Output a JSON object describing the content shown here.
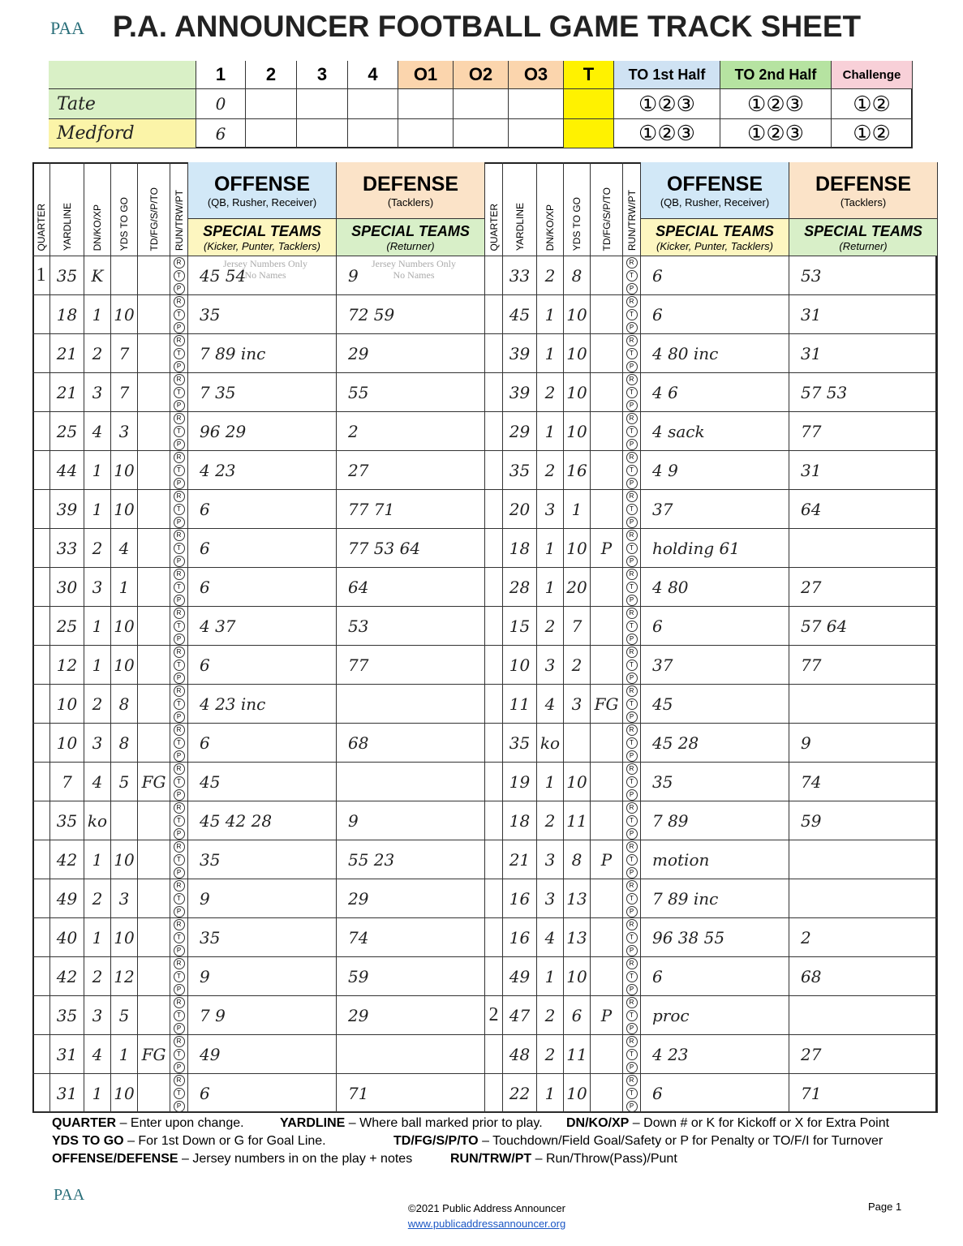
{
  "header": {
    "logo": "PAA",
    "title": "P.A. ANNOUNCER FOOTBALL GAME TRACK SHEET"
  },
  "scoreboard": {
    "columns": [
      "1",
      "2",
      "3",
      "4",
      "O1",
      "O2",
      "O3",
      "T",
      "TO 1st Half",
      "TO 2nd Half",
      "Challenge"
    ],
    "teams": [
      {
        "name": "Tate",
        "scores": [
          "0",
          null,
          null,
          null,
          null,
          null,
          null,
          null
        ],
        "to1": "①②③",
        "to2": "①②③",
        "challenge": "①②"
      },
      {
        "name": "Medford",
        "scores": [
          "6",
          null,
          null,
          null,
          null,
          null,
          null,
          null
        ],
        "to1": "①②③",
        "to2": "①②③",
        "challenge": "①②"
      }
    ]
  },
  "track": {
    "columns": {
      "quarter": "QUARTER",
      "yardline": "YARDLINE",
      "down": "DN/KO/XP",
      "to_go": "YDS TO GO",
      "result": "TD/FG/S/P/TO",
      "play": "RUN/TRW/PT",
      "offense": "OFFENSE",
      "offense_sub": "(QB, Rusher, Receiver)",
      "defense": "DEFENSE",
      "defense_sub": "(Tacklers)",
      "st_left": "SPECIAL TEAMS",
      "st_left_sub": "(Kicker, Punter, Tacklers)",
      "st_right": "SPECIAL TEAMS",
      "st_right_sub": "(Returner)"
    },
    "play_marks": [
      "R",
      "T",
      "P"
    ],
    "placeholder": [
      "Jersey Numbers Only",
      "No Names"
    ],
    "left": [
      [
        "1",
        "35",
        "K",
        null,
        null,
        "45 54",
        "9"
      ],
      [
        null,
        "18",
        "1",
        "10",
        null,
        "35",
        "72 59"
      ],
      [
        null,
        "21",
        "2",
        "7",
        null,
        "7 89 inc",
        "29"
      ],
      [
        null,
        "21",
        "3",
        "7",
        null,
        "7 35",
        "55"
      ],
      [
        null,
        "25",
        "4",
        "3",
        null,
        "96 29",
        "2"
      ],
      [
        null,
        "44",
        "1",
        "10",
        null,
        "4 23",
        "27"
      ],
      [
        null,
        "39",
        "1",
        "10",
        null,
        "6",
        "77 71"
      ],
      [
        null,
        "33",
        "2",
        "4",
        null,
        "6",
        "77 53 64"
      ],
      [
        null,
        "30",
        "3",
        "1",
        null,
        "6",
        "64"
      ],
      [
        null,
        "25",
        "1",
        "10",
        null,
        "4 37",
        "53"
      ],
      [
        null,
        "12",
        "1",
        "10",
        null,
        "6",
        "77"
      ],
      [
        null,
        "10",
        "2",
        "8",
        null,
        "4 23 inc",
        null
      ],
      [
        null,
        "10",
        "3",
        "8",
        null,
        "6",
        "68"
      ],
      [
        null,
        "7",
        "4",
        "5",
        "FG",
        "45",
        null
      ],
      [
        null,
        "35",
        "ko",
        null,
        null,
        "45 42 28",
        "9"
      ],
      [
        null,
        "42",
        "1",
        "10",
        null,
        "35",
        "55 23"
      ],
      [
        null,
        "49",
        "2",
        "3",
        null,
        "9",
        "29"
      ],
      [
        null,
        "40",
        "1",
        "10",
        null,
        "35",
        "74"
      ],
      [
        null,
        "42",
        "2",
        "12",
        null,
        "9",
        "59"
      ],
      [
        null,
        "35",
        "3",
        "5",
        null,
        "7 9",
        "29"
      ],
      [
        null,
        "31",
        "4",
        "1",
        "FG",
        "49",
        null
      ],
      [
        null,
        "31",
        "1",
        "10",
        null,
        "6",
        "71"
      ]
    ],
    "right": [
      [
        null,
        "33",
        "2",
        "8",
        null,
        "6",
        "53"
      ],
      [
        null,
        "45",
        "1",
        "10",
        null,
        "6",
        "31"
      ],
      [
        null,
        "39",
        "1",
        "10",
        null,
        "4 80 inc",
        "31"
      ],
      [
        null,
        "39",
        "2",
        "10",
        null,
        "4 6",
        "57 53"
      ],
      [
        null,
        "29",
        "1",
        "10",
        null,
        "4 sack",
        "77"
      ],
      [
        null,
        "35",
        "2",
        "16",
        null,
        "4 9",
        "31"
      ],
      [
        null,
        "20",
        "3",
        "1",
        null,
        "37",
        "64"
      ],
      [
        null,
        "18",
        "1",
        "10",
        "P",
        "holding 61",
        null
      ],
      [
        null,
        "28",
        "1",
        "20",
        null,
        "4 80",
        "27"
      ],
      [
        null,
        "15",
        "2",
        "7",
        null,
        "6",
        "57 64"
      ],
      [
        null,
        "10",
        "3",
        "2",
        null,
        "37",
        "77"
      ],
      [
        null,
        "11",
        "4",
        "3",
        "FG",
        "45",
        null
      ],
      [
        null,
        "35",
        "ko",
        null,
        null,
        "45 28",
        "9"
      ],
      [
        null,
        "19",
        "1",
        "10",
        null,
        "35",
        "74"
      ],
      [
        null,
        "18",
        "2",
        "11",
        null,
        "7 89",
        "59"
      ],
      [
        null,
        "21",
        "3",
        "8",
        "P",
        "motion",
        null
      ],
      [
        null,
        "16",
        "3",
        "13",
        null,
        "7 89 inc",
        null
      ],
      [
        null,
        "16",
        "4",
        "13",
        null,
        "96 38 55",
        "2"
      ],
      [
        null,
        "49",
        "1",
        "10",
        null,
        "6",
        "68"
      ],
      [
        "2",
        "47",
        "2",
        "6",
        "P",
        "proc",
        null
      ],
      [
        null,
        "48",
        "2",
        "11",
        null,
        "4 23",
        "27"
      ],
      [
        null,
        "22",
        "1",
        "10",
        null,
        "6",
        "71"
      ]
    ]
  },
  "legend": [
    [
      {
        "term": "QUARTER",
        "desc": "– Enter upon change."
      },
      {
        "term": "YARDLINE",
        "desc": "– Where ball marked prior to play."
      },
      {
        "term": "DN/KO/XP",
        "desc": "– Down # or K for Kickoff or X for Extra Point"
      }
    ],
    [
      {
        "term": "YDS TO GO",
        "desc": "– For 1st Down or G for Goal Line."
      },
      {
        "term": "TD/FG/S/P/TO",
        "desc": "– Touchdown/Field Goal/Safety or P for Penalty or TO/F/I for Turnover"
      }
    ],
    [
      {
        "term": "OFFENSE/DEFENSE",
        "desc": "– Jersey numbers in on the play + notes"
      },
      {
        "term": "RUN/TRW/PT",
        "desc": "– Run/Throw(Pass)/Punt"
      }
    ]
  ],
  "footer": {
    "copyright": "©2021 Public Address Announcer",
    "url": "www.publicaddressannouncer.org",
    "page": "Page 1",
    "logo": "PAA"
  }
}
